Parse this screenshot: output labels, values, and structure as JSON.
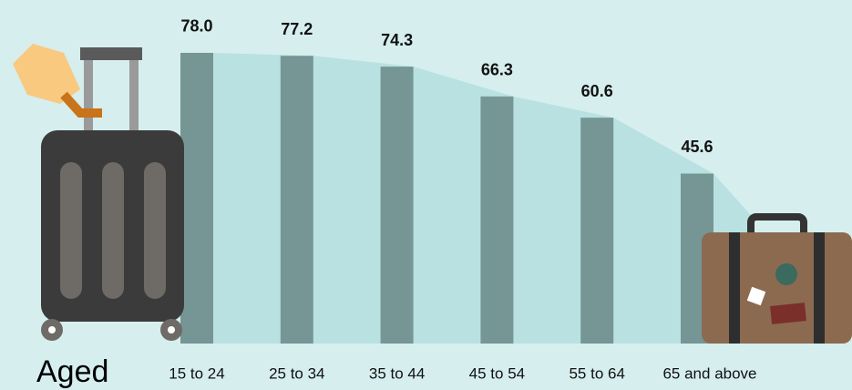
{
  "chart_data": {
    "type": "bar",
    "x_label": "Aged",
    "categories": [
      "15 to 24",
      "25 to 34",
      "35 to 44",
      "45 to 54",
      "55 to 64",
      "65 and above"
    ],
    "values": [
      78.0,
      77.2,
      74.3,
      66.3,
      60.6,
      45.6
    ],
    "value_labels": [
      "78.0",
      "77.2",
      "74.3",
      "66.3",
      "60.6",
      "45.6"
    ],
    "color": "#769696",
    "shade_color": "#b9e1e1"
  }
}
